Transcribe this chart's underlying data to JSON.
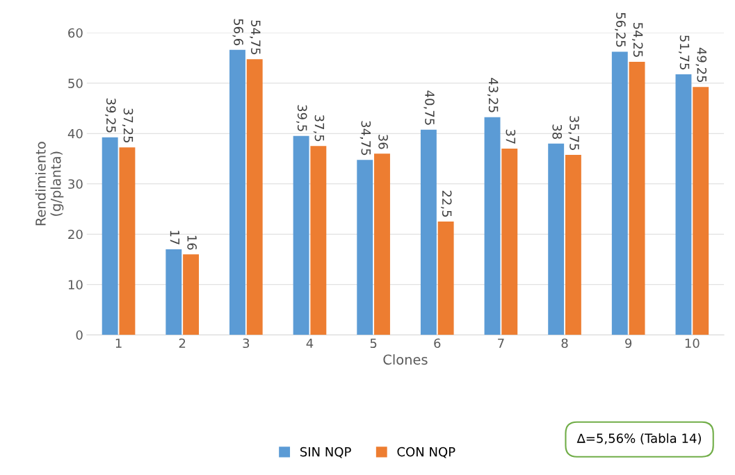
{
  "chart_data": {
    "type": "bar",
    "xlabel": "Clones",
    "ylabel": "Rendimiento\n(g/planta)",
    "categories": [
      "1",
      "2",
      "3",
      "4",
      "5",
      "6",
      "7",
      "8",
      "9",
      "10"
    ],
    "series": [
      {
        "name": "SIN NQP",
        "color": "#5b9bd5",
        "values": [
          39.25,
          17,
          56.6,
          39.5,
          34.75,
          40.75,
          43.25,
          38,
          56.25,
          51.75
        ],
        "value_labels": [
          "39,25",
          "17",
          "56,6",
          "39,5",
          "34,75",
          "40,75",
          "43,25",
          "38",
          "56,25",
          "51,75"
        ]
      },
      {
        "name": "CON NQP",
        "color": "#ed7d31",
        "values": [
          37.25,
          16,
          54.75,
          37.5,
          36,
          22.5,
          37,
          35.75,
          54.25,
          49.25
        ],
        "value_labels": [
          "37,25",
          "16",
          "54,75",
          "37,5",
          "36",
          "22,5",
          "37",
          "35,75",
          "54,25",
          "49,25"
        ]
      }
    ],
    "ylim": [
      0,
      60
    ],
    "yticks": [
      0,
      10,
      20,
      30,
      40,
      50,
      60
    ],
    "grid": "y",
    "legend": "bottom",
    "annotations": [
      "∆=5,56% (Tabla 14)"
    ]
  }
}
